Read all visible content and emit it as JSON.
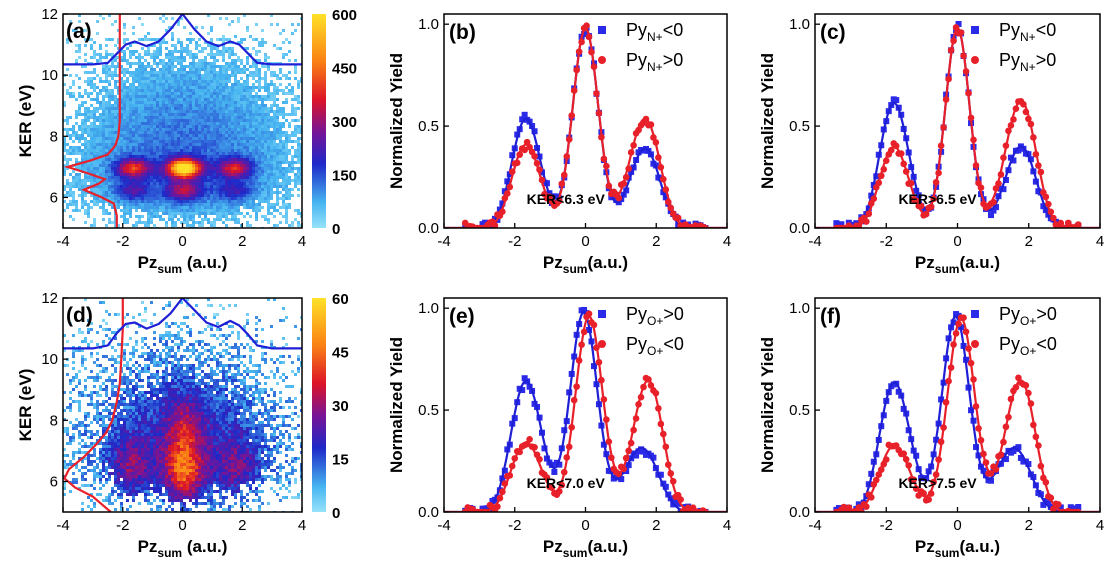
{
  "colors": {
    "blue": "#1f1fd6",
    "red": "#e8202a",
    "square_blue": "#2a2ae8",
    "dot_red": "#e8202a"
  },
  "chart_data": [
    {
      "id": "a",
      "type": "heatmap",
      "panel_label": "(a)",
      "xlabel": "Pz",
      "xlabel_sub": "sum",
      "xlabel_unit": " (a.u.)",
      "ylabel": "KER (eV)",
      "xlim": [
        -4,
        4
      ],
      "ylim": [
        5,
        12
      ],
      "xticks": [
        "-4",
        "-2",
        "0",
        "2",
        "4"
      ],
      "yticks": [
        "6",
        "8",
        "10",
        "12"
      ],
      "colorbar": {
        "min": 0,
        "max": 600,
        "ticks": [
          "0",
          "150",
          "300",
          "450",
          "600"
        ]
      },
      "hotspots": [
        {
          "x": 0.0,
          "y": 7.0,
          "weight": 1.0
        },
        {
          "x": -1.7,
          "y": 7.0,
          "weight": 0.55
        },
        {
          "x": 1.7,
          "y": 7.0,
          "weight": 0.5
        },
        {
          "x": 0.0,
          "y": 6.25,
          "weight": 0.4
        },
        {
          "x": -1.7,
          "y": 6.25,
          "weight": 0.25
        },
        {
          "x": 1.7,
          "y": 6.25,
          "weight": 0.22
        }
      ],
      "ker_profile": {
        "ker": [
          5.0,
          5.4,
          5.8,
          6.0,
          6.25,
          6.45,
          6.6,
          6.8,
          7.0,
          7.2,
          7.4,
          7.7,
          8.0,
          8.5,
          9.0,
          10.0,
          11.0,
          12.0
        ],
        "pz": [
          -2.2,
          -2.2,
          -2.3,
          -2.7,
          -3.3,
          -2.8,
          -2.6,
          -3.2,
          -3.85,
          -3.1,
          -2.5,
          -2.25,
          -2.15,
          -2.1,
          -2.1,
          -2.1,
          -2.1,
          -2.1
        ]
      },
      "pz_profile": {
        "pz": [
          -4.0,
          -3.0,
          -2.5,
          -2.2,
          -1.9,
          -1.6,
          -1.2,
          -0.8,
          -0.4,
          0.0,
          0.4,
          0.8,
          1.2,
          1.6,
          1.9,
          2.2,
          2.5,
          3.0,
          4.0
        ],
        "ker": [
          10.35,
          10.35,
          10.4,
          10.7,
          11.0,
          11.1,
          10.95,
          11.1,
          11.5,
          12.0,
          11.5,
          11.1,
          10.95,
          11.1,
          11.0,
          10.7,
          10.4,
          10.35,
          10.35
        ]
      }
    },
    {
      "id": "b",
      "type": "scatter",
      "panel_label": "(b)",
      "xlabel": "Pz",
      "xlabel_sub": "sum",
      "xlabel_unit": "(a.u.)",
      "ylabel": "Normalized Yield",
      "xlim": [
        -4,
        4
      ],
      "ylim": [
        0,
        1.05
      ],
      "xticks": [
        "-4",
        "-2",
        "0",
        "2",
        "4"
      ],
      "yticks": [
        "0.0",
        "0.5",
        "1.0"
      ],
      "annotation": "KER<6.3 eV",
      "series": [
        {
          "name": "Py",
          "name_sub": "N+",
          "name_suffix": "<0",
          "marker": "square",
          "color": "#2a2ae8",
          "line": "#1f1fd6",
          "peaks": [
            [
              -1.7,
              0.55,
              0.42
            ],
            [
              0.0,
              0.98,
              0.36
            ],
            [
              1.7,
              0.4,
              0.45
            ]
          ],
          "base_width": 2.3
        },
        {
          "name": "Py",
          "name_sub": "N+",
          "name_suffix": ">0",
          "marker": "circle",
          "color": "#e8202a",
          "line": "#e8202a",
          "peaks": [
            [
              -1.7,
              0.42,
              0.42
            ],
            [
              0.0,
              0.98,
              0.36
            ],
            [
              1.7,
              0.55,
              0.45
            ]
          ],
          "base_width": 2.3
        }
      ]
    },
    {
      "id": "c",
      "type": "scatter",
      "panel_label": "(c)",
      "xlabel": "Pz",
      "xlabel_sub": "sum",
      "xlabel_unit": "(a.u.)",
      "ylabel": "Normalized Yield",
      "xlim": [
        -4,
        4
      ],
      "ylim": [
        0,
        1.05
      ],
      "xticks": [
        "-4",
        "-2",
        "0",
        "2",
        "4"
      ],
      "yticks": [
        "0.0",
        "0.5",
        "1.0"
      ],
      "annotation": "KER>6.5 eV",
      "series": [
        {
          "name": "Py",
          "name_sub": "N+",
          "name_suffix": "<0",
          "marker": "square",
          "color": "#2a2ae8",
          "line": "#1f1fd6",
          "peaks": [
            [
              -1.8,
              0.63,
              0.42
            ],
            [
              0.0,
              0.98,
              0.34
            ],
            [
              1.8,
              0.41,
              0.45
            ]
          ],
          "base_width": 2.4
        },
        {
          "name": "Py",
          "name_sub": "N+",
          "name_suffix": ">0",
          "marker": "circle",
          "color": "#e8202a",
          "line": "#e8202a",
          "peaks": [
            [
              -1.8,
              0.41,
              0.42
            ],
            [
              0.0,
              0.98,
              0.34
            ],
            [
              1.8,
              0.64,
              0.45
            ]
          ],
          "base_width": 2.4
        }
      ]
    },
    {
      "id": "d",
      "type": "heatmap",
      "panel_label": "(d)",
      "xlabel": "Pz",
      "xlabel_sub": "sum",
      "xlabel_unit": " (a.u.)",
      "ylabel": "KER (eV)",
      "xlim": [
        -4,
        4
      ],
      "ylim": [
        5,
        12
      ],
      "xticks": [
        "-4",
        "-2",
        "0",
        "2",
        "4"
      ],
      "yticks": [
        "6",
        "8",
        "10",
        "12"
      ],
      "colorbar": {
        "min": 0,
        "max": 60,
        "ticks": [
          "0",
          "15",
          "30",
          "45",
          "60"
        ]
      },
      "hotspots": [
        {
          "x": 0.0,
          "y": 6.3,
          "weight": 0.8
        },
        {
          "x": 0.0,
          "y": 7.8,
          "weight": 0.45
        },
        {
          "x": -1.8,
          "y": 6.5,
          "weight": 0.4
        },
        {
          "x": 1.8,
          "y": 6.5,
          "weight": 0.35
        }
      ],
      "ker_profile": {
        "ker": [
          5.0,
          5.5,
          5.8,
          6.1,
          6.4,
          6.8,
          7.2,
          7.6,
          8.0,
          8.6,
          9.2,
          10.0,
          11.0,
          12.0
        ],
        "pz": [
          -2.4,
          -3.0,
          -3.6,
          -3.95,
          -3.8,
          -3.3,
          -2.9,
          -2.55,
          -2.35,
          -2.2,
          -2.1,
          -2.05,
          -2.0,
          -2.0
        ]
      },
      "pz_profile": {
        "pz": [
          -4.0,
          -3.0,
          -2.5,
          -2.2,
          -1.9,
          -1.6,
          -1.2,
          -0.8,
          -0.4,
          0.0,
          0.4,
          0.8,
          1.2,
          1.6,
          1.9,
          2.2,
          2.5,
          3.0,
          4.0
        ],
        "ker": [
          10.35,
          10.35,
          10.45,
          10.85,
          11.15,
          11.2,
          11.0,
          11.15,
          11.5,
          12.0,
          11.6,
          11.2,
          11.05,
          11.25,
          11.1,
          10.8,
          10.45,
          10.35,
          10.35
        ]
      }
    },
    {
      "id": "e",
      "type": "scatter",
      "panel_label": "(e)",
      "xlabel": "Pz",
      "xlabel_sub": "sum",
      "xlabel_unit": "(a.u.)",
      "ylabel": "Normalized Yield",
      "xlim": [
        -4,
        4
      ],
      "ylim": [
        0,
        1.05
      ],
      "xticks": [
        "-4",
        "-2",
        "0",
        "2",
        "4"
      ],
      "yticks": [
        "0.0",
        "0.5",
        "1.0"
      ],
      "annotation": "KER<7.0 eV",
      "series": [
        {
          "name": "Py",
          "name_sub": "O+",
          "name_suffix": ">0",
          "marker": "square",
          "color": "#2a2ae8",
          "line": "#1f1fd6",
          "peaks": [
            [
              -1.7,
              0.66,
              0.45
            ],
            [
              -0.05,
              0.98,
              0.38
            ],
            [
              1.6,
              0.32,
              0.5
            ]
          ],
          "base_width": 2.3
        },
        {
          "name": "Py",
          "name_sub": "O+",
          "name_suffix": "<0",
          "marker": "circle",
          "color": "#e8202a",
          "line": "#e8202a",
          "peaks": [
            [
              -1.7,
              0.35,
              0.45
            ],
            [
              0.1,
              0.96,
              0.38
            ],
            [
              1.8,
              0.67,
              0.45
            ]
          ],
          "base_width": 2.3
        }
      ]
    },
    {
      "id": "f",
      "type": "scatter",
      "panel_label": "(f)",
      "xlabel": "Pz",
      "xlabel_sub": "sum",
      "xlabel_unit": "(a.u.)",
      "ylabel": "Normalized Yield",
      "xlim": [
        -4,
        4
      ],
      "ylim": [
        0,
        1.05
      ],
      "xticks": [
        "-4",
        "-2",
        "0",
        "2",
        "4"
      ],
      "yticks": [
        "0.0",
        "0.5",
        "1.0"
      ],
      "annotation": "KER>7.5 eV",
      "series": [
        {
          "name": "Py",
          "name_sub": "O+",
          "name_suffix": ">0",
          "marker": "square",
          "color": "#2a2ae8",
          "line": "#1f1fd6",
          "peaks": [
            [
              -1.8,
              0.66,
              0.45
            ],
            [
              -0.05,
              0.96,
              0.38
            ],
            [
              1.6,
              0.32,
              0.5
            ]
          ],
          "base_width": 2.3
        },
        {
          "name": "Py",
          "name_sub": "O+",
          "name_suffix": "<0",
          "marker": "circle",
          "color": "#e8202a",
          "line": "#e8202a",
          "peaks": [
            [
              -1.8,
              0.34,
              0.45
            ],
            [
              0.1,
              0.95,
              0.38
            ],
            [
              1.8,
              0.67,
              0.45
            ]
          ],
          "base_width": 2.3
        }
      ]
    }
  ]
}
